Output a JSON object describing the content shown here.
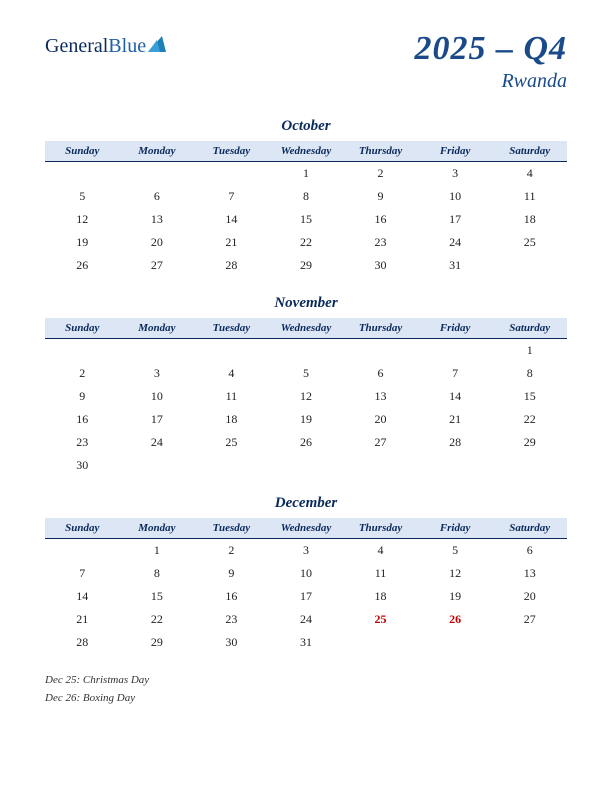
{
  "logo": {
    "text1": "General",
    "text2": "Blue"
  },
  "header": {
    "quarter": "2025 – Q4",
    "country": "Rwanda"
  },
  "days": [
    "Sunday",
    "Monday",
    "Tuesday",
    "Wednesday",
    "Thursday",
    "Friday",
    "Saturday"
  ],
  "colors": {
    "header_bg": "#dde6f4",
    "header_text": "#0a2a5c",
    "title_text": "#1a4a8a",
    "holiday_text": "#c00000",
    "logo_triangle": "#1f7fb8"
  },
  "months": [
    {
      "name": "October",
      "weeks": [
        [
          "",
          "",
          "",
          "1",
          "2",
          "3",
          "4"
        ],
        [
          "5",
          "6",
          "7",
          "8",
          "9",
          "10",
          "11"
        ],
        [
          "12",
          "13",
          "14",
          "15",
          "16",
          "17",
          "18"
        ],
        [
          "19",
          "20",
          "21",
          "22",
          "23",
          "24",
          "25"
        ],
        [
          "26",
          "27",
          "28",
          "29",
          "30",
          "31",
          ""
        ]
      ],
      "holidays": []
    },
    {
      "name": "November",
      "weeks": [
        [
          "",
          "",
          "",
          "",
          "",
          "",
          "1"
        ],
        [
          "2",
          "3",
          "4",
          "5",
          "6",
          "7",
          "8"
        ],
        [
          "9",
          "10",
          "11",
          "12",
          "13",
          "14",
          "15"
        ],
        [
          "16",
          "17",
          "18",
          "19",
          "20",
          "21",
          "22"
        ],
        [
          "23",
          "24",
          "25",
          "26",
          "27",
          "28",
          "29"
        ],
        [
          "30",
          "",
          "",
          "",
          "",
          "",
          ""
        ]
      ],
      "holidays": []
    },
    {
      "name": "December",
      "weeks": [
        [
          "",
          "1",
          "2",
          "3",
          "4",
          "5",
          "6"
        ],
        [
          "7",
          "8",
          "9",
          "10",
          "11",
          "12",
          "13"
        ],
        [
          "14",
          "15",
          "16",
          "17",
          "18",
          "19",
          "20"
        ],
        [
          "21",
          "22",
          "23",
          "24",
          "25",
          "26",
          "27"
        ],
        [
          "28",
          "29",
          "30",
          "31",
          "",
          "",
          ""
        ]
      ],
      "holidays": [
        "25",
        "26"
      ]
    }
  ],
  "notes": [
    "Dec 25: Christmas Day",
    "Dec 26: Boxing Day"
  ]
}
